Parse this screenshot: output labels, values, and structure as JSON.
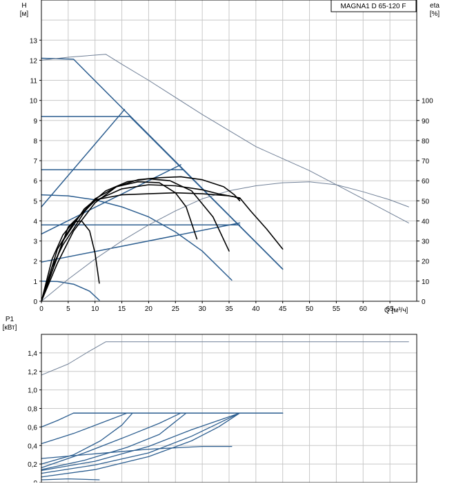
{
  "chart_data": [
    {
      "type": "line",
      "title_box": "MAGNA1 D 65-120 F",
      "ylabel_left": "H",
      "ylabel_left_unit": "[м]",
      "ylabel_right": "eta",
      "ylabel_right_unit": "[%]",
      "xlabel": "Q [м³/ч]",
      "xlim": [
        0,
        70
      ],
      "ylim": [
        0,
        15
      ],
      "eta_lim": [
        0,
        150
      ],
      "grid": true,
      "x_ticks": [
        0,
        5,
        10,
        15,
        20,
        25,
        30,
        35,
        40,
        45,
        50,
        55,
        60,
        65
      ],
      "y_ticks": [
        0,
        1,
        2,
        3,
        4,
        5,
        6,
        7,
        8,
        9,
        10,
        11,
        12,
        13
      ],
      "eta_ticks": [
        0,
        10,
        20,
        30,
        40,
        50,
        60,
        70,
        80,
        90,
        100
      ],
      "colors": {
        "blue": "#2b5d8f",
        "black": "#000000",
        "light": "#6f7f96",
        "grid": "#c8c8c8"
      },
      "series": [
        {
          "kind": "curve",
          "color": "blue",
          "width": 1.5,
          "points": [
            [
              0,
              12.1
            ],
            [
              6,
              12.05
            ],
            [
              45,
              1.6
            ]
          ]
        },
        {
          "kind": "curve",
          "color": "blue",
          "width": 1.5,
          "points": [
            [
              0,
              9.2
            ],
            [
              16.5,
              9.2
            ],
            [
              45,
              1.6
            ]
          ]
        },
        {
          "kind": "curve",
          "color": "blue",
          "width": 1.5,
          "points": [
            [
              0,
              6.55
            ],
            [
              26.5,
              6.55
            ],
            [
              45,
              1.6
            ]
          ]
        },
        {
          "kind": "curve",
          "color": "blue",
          "width": 1.5,
          "points": [
            [
              0,
              3.8
            ],
            [
              37,
              3.8
            ]
          ]
        },
        {
          "kind": "curve",
          "color": "blue",
          "width": 1.5,
          "points": [
            [
              0,
              4.7
            ],
            [
              15.5,
              9.55
            ]
          ]
        },
        {
          "kind": "curve",
          "color": "blue",
          "width": 1.5,
          "points": [
            [
              0,
              3.35
            ],
            [
              26,
              6.8
            ]
          ]
        },
        {
          "kind": "curve",
          "color": "blue",
          "width": 1.5,
          "points": [
            [
              0,
              1.95
            ],
            [
              37,
              3.9
            ]
          ]
        },
        {
          "kind": "curve",
          "color": "blue",
          "width": 1.5,
          "points": [
            [
              0,
              5.3
            ],
            [
              5,
              5.25
            ],
            [
              10,
              5.05
            ],
            [
              15,
              4.7
            ],
            [
              20,
              4.2
            ],
            [
              25,
              3.45
            ],
            [
              30,
              2.5
            ],
            [
              35.5,
              1.05
            ]
          ]
        },
        {
          "kind": "curve",
          "color": "blue",
          "width": 1.5,
          "points": [
            [
              0,
              1.0
            ],
            [
              3,
              0.98
            ],
            [
              6,
              0.85
            ],
            [
              9,
              0.5
            ],
            [
              10.8,
              0.05
            ]
          ]
        },
        {
          "kind": "curve",
          "color": "light",
          "width": 1,
          "points": [
            [
              0,
              12.0
            ],
            [
              5,
              12.15
            ],
            [
              12,
              12.3
            ],
            [
              15,
              11.8
            ],
            [
              20,
              11.0
            ],
            [
              30,
              9.3
            ],
            [
              40,
              7.7
            ],
            [
              50,
              6.5
            ],
            [
              60,
              5.1
            ],
            [
              68.5,
              3.9
            ]
          ]
        },
        {
          "kind": "curve",
          "color": "light",
          "width": 1,
          "points": [
            [
              0,
              0
            ],
            [
              5,
              1.1
            ],
            [
              10,
              2.1
            ],
            [
              15,
              3.0
            ],
            [
              20,
              3.8
            ],
            [
              25,
              4.5
            ],
            [
              30,
              5.1
            ],
            [
              35,
              5.5
            ],
            [
              40,
              5.75
            ],
            [
              45,
              5.9
            ],
            [
              50,
              5.95
            ],
            [
              55,
              5.8
            ],
            [
              60,
              5.45
            ],
            [
              65,
              5.05
            ],
            [
              68.5,
              4.7
            ]
          ]
        },
        {
          "kind": "curve",
          "color": "black",
          "width": 1.6,
          "points": [
            [
              0,
              0
            ],
            [
              2,
              1.7
            ],
            [
              4,
              2.8
            ],
            [
              6,
              3.6
            ],
            [
              8,
              4.45
            ],
            [
              10,
              5.05
            ],
            [
              15,
              5.3
            ],
            [
              20,
              5.35
            ],
            [
              25,
              5.4
            ],
            [
              30,
              5.35
            ],
            [
              35,
              5.25
            ],
            [
              37,
              5.15
            ],
            [
              39,
              4.5
            ],
            [
              42,
              3.6
            ],
            [
              45,
              2.6
            ]
          ]
        },
        {
          "kind": "curve",
          "color": "black",
          "width": 1.6,
          "points": [
            [
              0,
              0
            ],
            [
              5,
              3.7
            ],
            [
              10,
              5.0
            ],
            [
              15,
              5.6
            ],
            [
              20,
              5.8
            ],
            [
              25,
              5.75
            ],
            [
              30,
              5.55
            ],
            [
              33,
              5.35
            ],
            [
              36,
              5.2
            ],
            [
              37,
              5.1
            ]
          ]
        },
        {
          "kind": "curve",
          "color": "black",
          "width": 1.6,
          "points": [
            [
              0,
              0
            ],
            [
              4,
              3.0
            ],
            [
              8,
              4.6
            ],
            [
              12,
              5.5
            ],
            [
              16,
              5.95
            ],
            [
              20,
              6.1
            ],
            [
              24,
              6.0
            ],
            [
              28,
              5.5
            ],
            [
              32,
              4.2
            ],
            [
              35,
              2.5
            ]
          ]
        },
        {
          "kind": "curve",
          "color": "black",
          "width": 1.6,
          "points": [
            [
              0,
              0
            ],
            [
              3,
              2.6
            ],
            [
              6,
              3.9
            ],
            [
              10,
              5.1
            ],
            [
              14,
              5.7
            ],
            [
              18,
              5.95
            ],
            [
              22,
              5.9
            ],
            [
              25,
              5.4
            ],
            [
              27,
              4.7
            ],
            [
              29,
              3.1
            ]
          ]
        },
        {
          "kind": "curve",
          "color": "black",
          "width": 1.6,
          "points": [
            [
              0,
              0
            ],
            [
              3,
              1.9
            ],
            [
              6,
              3.5
            ],
            [
              10,
              4.9
            ],
            [
              14,
              5.7
            ],
            [
              18,
              6.05
            ],
            [
              22,
              6.15
            ],
            [
              26,
              6.2
            ],
            [
              30,
              6.05
            ],
            [
              34,
              5.7
            ],
            [
              36,
              5.3
            ],
            [
              37,
              5.0
            ]
          ]
        },
        {
          "kind": "curve",
          "color": "black",
          "width": 1.6,
          "points": [
            [
              0,
              0
            ],
            [
              2,
              2.1
            ],
            [
              4,
              3.3
            ],
            [
              6,
              3.95
            ],
            [
              7.5,
              4.0
            ],
            [
              9,
              3.5
            ],
            [
              10,
              2.4
            ],
            [
              10.8,
              0.9
            ]
          ]
        }
      ]
    },
    {
      "type": "line",
      "ylabel": "P1",
      "ylabel_unit": "[кВт]",
      "xlim": [
        0,
        70
      ],
      "ylim": [
        0,
        1.6
      ],
      "grid": true,
      "y_ticks": [
        0,
        0.2,
        0.4,
        0.6,
        0.8,
        1.0,
        1.2,
        1.4
      ],
      "y_tick_labels": [
        "0",
        "0,2",
        "0,4",
        "0,6",
        "0,8",
        "1,0",
        "1,2",
        "1,4"
      ],
      "series": [
        {
          "kind": "curve",
          "color": "light",
          "width": 1,
          "points": [
            [
              0,
              1.16
            ],
            [
              5,
              1.28
            ],
            [
              9,
              1.42
            ],
            [
              12,
              1.52
            ],
            [
              68.5,
              1.52
            ]
          ]
        },
        {
          "kind": "curve",
          "color": "blue",
          "width": 1.5,
          "points": [
            [
              6,
              0.75
            ],
            [
              45,
              0.75
            ]
          ]
        },
        {
          "kind": "curve",
          "color": "blue",
          "width": 1.3,
          "points": [
            [
              0,
              0.6
            ],
            [
              3,
              0.67
            ],
            [
              6,
              0.75
            ]
          ]
        },
        {
          "kind": "curve",
          "color": "blue",
          "width": 1.3,
          "points": [
            [
              0,
              0.42
            ],
            [
              6,
              0.53
            ],
            [
              11,
              0.64
            ],
            [
              16,
              0.75
            ]
          ]
        },
        {
          "kind": "curve",
          "color": "blue",
          "width": 1.3,
          "points": [
            [
              0,
              0.2
            ],
            [
              6,
              0.3
            ],
            [
              11,
              0.45
            ],
            [
              15,
              0.62
            ],
            [
              17,
              0.75
            ]
          ]
        },
        {
          "kind": "curve",
          "color": "blue",
          "width": 1.3,
          "points": [
            [
              0,
              0.16
            ],
            [
              8,
              0.32
            ],
            [
              16,
              0.5
            ],
            [
              22,
              0.64
            ],
            [
              26,
              0.75
            ]
          ]
        },
        {
          "kind": "curve",
          "color": "blue",
          "width": 1.3,
          "points": [
            [
              0,
              0.14
            ],
            [
              8,
              0.24
            ],
            [
              16,
              0.38
            ],
            [
              22,
              0.52
            ],
            [
              27,
              0.75
            ]
          ]
        },
        {
          "kind": "curve",
          "color": "blue",
          "width": 1.3,
          "points": [
            [
              0,
              0.13
            ],
            [
              10,
              0.23
            ],
            [
              20,
              0.39
            ],
            [
              28,
              0.57
            ],
            [
              37,
              0.75
            ]
          ]
        },
        {
          "kind": "curve",
          "color": "blue",
          "width": 1.3,
          "points": [
            [
              0,
              0.1
            ],
            [
              10,
              0.19
            ],
            [
              20,
              0.32
            ],
            [
              28,
              0.5
            ],
            [
              37,
              0.75
            ]
          ]
        },
        {
          "kind": "curve",
          "color": "blue",
          "width": 1.3,
          "points": [
            [
              0,
              0.06
            ],
            [
              10,
              0.14
            ],
            [
              20,
              0.28
            ],
            [
              28,
              0.45
            ],
            [
              33,
              0.6
            ],
            [
              37,
              0.75
            ]
          ]
        },
        {
          "kind": "curve",
          "color": "blue",
          "width": 1.3,
          "points": [
            [
              0,
              0.26
            ],
            [
              10,
              0.31
            ],
            [
              20,
              0.36
            ],
            [
              30,
              0.39
            ],
            [
              35.5,
              0.39
            ]
          ]
        },
        {
          "kind": "curve",
          "color": "blue",
          "width": 1.3,
          "points": [
            [
              0,
              0.03
            ],
            [
              5,
              0.04
            ],
            [
              10.8,
              0.03
            ]
          ]
        }
      ]
    }
  ]
}
